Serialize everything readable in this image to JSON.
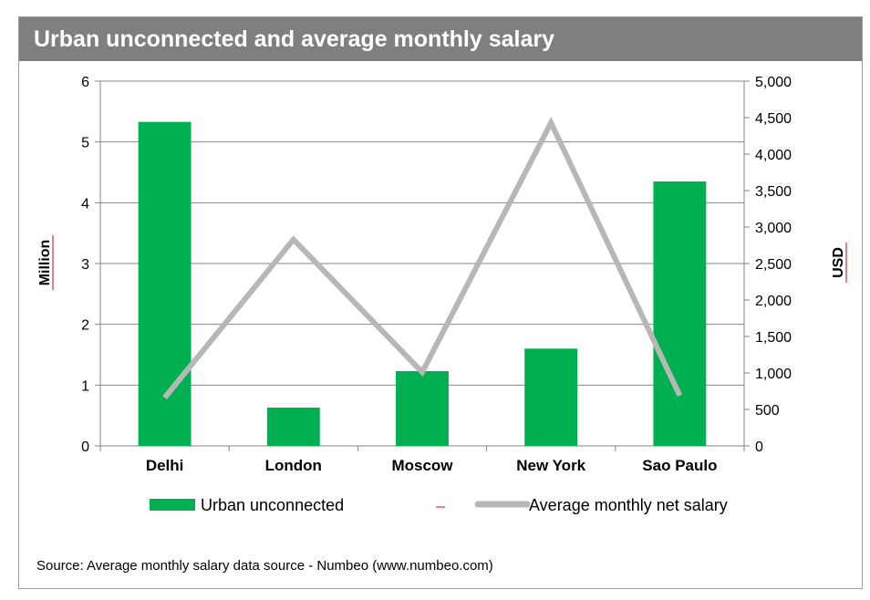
{
  "chart_data": {
    "type": "bar+line",
    "title": "Urban unconnected and average monthly salary",
    "categories": [
      "Delhi",
      "London",
      "Moscow",
      "New York",
      "Sao Paulo"
    ],
    "series": [
      {
        "name": "Urban unconnected",
        "type": "bar",
        "axis": "left",
        "color": "#00b050",
        "values": [
          5.33,
          0.63,
          1.23,
          1.6,
          4.35
        ]
      },
      {
        "name": "Average monthly net salary",
        "type": "line",
        "axis": "right",
        "color": "#b7b7b7",
        "values": [
          660,
          2830,
          1010,
          4430,
          690
        ]
      }
    ],
    "ylabel_left": "Million",
    "ylabel_right": "USD",
    "ylim_left": [
      0,
      6
    ],
    "ylim_right": [
      0,
      5000
    ],
    "yticks_left": [
      "0",
      "1",
      "2",
      "3",
      "4",
      "5",
      "6"
    ],
    "yticks_right": [
      "0",
      "500",
      "1,000",
      "1,500",
      "2,000",
      "2,500",
      "3,000",
      "3,500",
      "4,000",
      "4,500",
      "5,000"
    ],
    "grid": "horizontal",
    "legend": "bottom",
    "legend_marker_color": "#ff5050",
    "source": "Source: Average monthly salary data source - Numbeo (www.numbeo.com)"
  }
}
